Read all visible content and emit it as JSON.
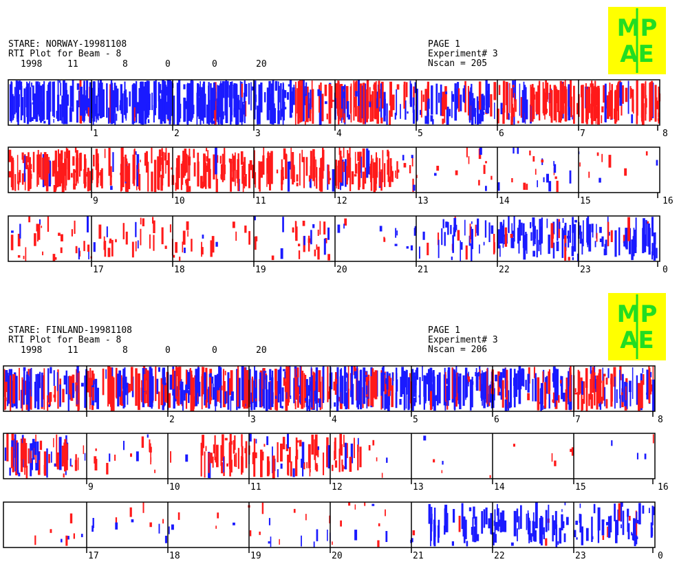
{
  "panels": [
    {
      "station": "STARE: NORWAY-19981108",
      "plot": "RTI Plot for Beam -   8",
      "date": [
        "1998",
        "11",
        "8",
        "0",
        "0",
        "20"
      ],
      "page": "PAGE  1",
      "experiment": "Experiment#  3",
      "nscan": "Nscan = 205",
      "logo": [
        "MP",
        "AE"
      ],
      "rows": [
        [
          1,
          2,
          3,
          4,
          5,
          6,
          7,
          8
        ],
        [
          9,
          10,
          11,
          12,
          13,
          14,
          15,
          16
        ],
        [
          17,
          18,
          19,
          20,
          21,
          22,
          23,
          0
        ]
      ]
    },
    {
      "station": "STARE: FINLAND-19981108",
      "plot": "RTI Plot for Beam -   8",
      "date": [
        "1998",
        "11",
        "8",
        "0",
        "0",
        "20"
      ],
      "page": "PAGE  1",
      "experiment": "Experiment#  3",
      "nscan": "Nscan = 206",
      "logo": [
        "MP",
        "AE"
      ],
      "rows": [
        [
          null,
          2,
          3,
          4,
          5,
          6,
          7,
          8
        ],
        [
          9,
          10,
          11,
          12,
          13,
          14,
          15,
          16
        ],
        [
          17,
          18,
          19,
          20,
          21,
          22,
          23,
          0
        ]
      ]
    }
  ]
}
